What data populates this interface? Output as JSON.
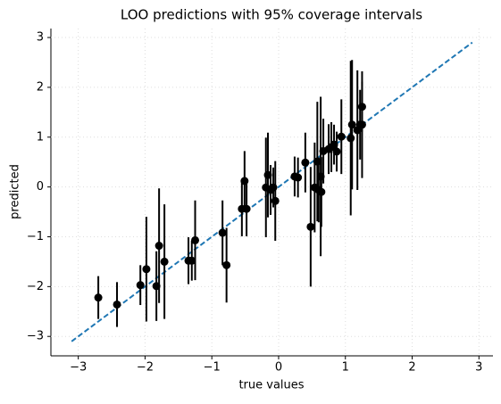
{
  "chart_data": {
    "type": "errorbar-scatter",
    "title": "LOO predictions with 95% coverage intervals",
    "x_label": "true values",
    "y_label": "predicted",
    "xlim": [
      -3.41,
      3.21
    ],
    "ylim": [
      -3.39,
      3.18
    ],
    "xticks": [
      {
        "value": -3,
        "label": "−3"
      },
      {
        "value": -2,
        "label": "−2"
      },
      {
        "value": -1,
        "label": "−1"
      },
      0,
      1,
      2,
      3
    ],
    "yticks": [
      {
        "value": -3,
        "label": "−3"
      },
      {
        "value": -2,
        "label": "−2"
      },
      {
        "value": -1,
        "label": "−1"
      },
      0,
      1,
      2,
      3
    ],
    "grid": true,
    "series": [
      {
        "color": "#000000",
        "x": [
          -2.7,
          -2.42,
          -2.07,
          -1.98,
          -1.83,
          -1.79,
          -1.71,
          -1.35,
          -1.3,
          -1.25,
          -0.84,
          -0.78,
          -0.55,
          -0.51,
          -0.48,
          -0.19,
          -0.16,
          -0.12,
          -0.05,
          -0.08,
          0.24,
          0.29,
          0.4,
          0.48,
          0.54,
          0.58,
          0.6,
          0.63,
          0.64,
          0.67,
          0.75,
          0.79,
          0.83,
          0.87,
          0.94,
          1.08,
          1.1,
          1.18,
          1.22,
          1.25,
          1.25
        ],
        "values": [
          -2.22,
          -2.36,
          -1.97,
          -1.65,
          -1.99,
          -1.18,
          -1.5,
          -1.48,
          -1.48,
          -1.07,
          -0.92,
          -1.57,
          -0.44,
          0.12,
          -0.44,
          -0.01,
          0.24,
          -0.06,
          -0.28,
          -0.01,
          0.21,
          0.19,
          0.49,
          -0.8,
          -0.01,
          0.51,
          -0.06,
          0.21,
          -0.1,
          0.72,
          0.76,
          0.8,
          0.85,
          0.71,
          1.01,
          0.98,
          1.25,
          1.14,
          1.25,
          1.25,
          1.61
        ],
        "errors": [
          0.43,
          0.45,
          0.4,
          1.05,
          0.7,
          1.15,
          1.15,
          0.47,
          0.4,
          0.8,
          0.65,
          0.75,
          0.55,
          0.6,
          0.55,
          1.0,
          0.85,
          0.5,
          0.8,
          0.4,
          0.4,
          0.4,
          0.6,
          1.2,
          0.9,
          1.2,
          0.65,
          1.6,
          0.7,
          0.65,
          0.5,
          0.5,
          0.4,
          0.4,
          0.75,
          1.55,
          1.3,
          1.2,
          0.7,
          1.07,
          0.5
        ]
      }
    ],
    "reference_line": {
      "x": [
        -3.1,
        2.9
      ],
      "y": [
        -3.1,
        2.9
      ],
      "color": "#1f77b4"
    }
  }
}
